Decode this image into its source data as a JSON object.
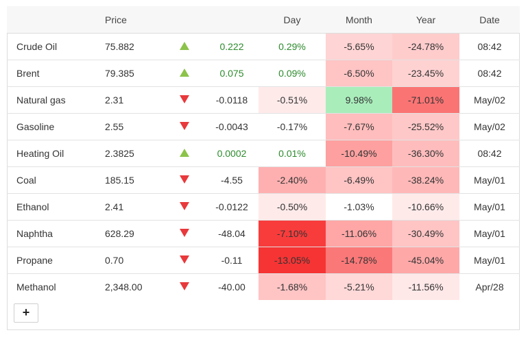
{
  "headers": {
    "name": "",
    "price": "Price",
    "arrow": "",
    "change": "",
    "day": "Day",
    "month": "Month",
    "year": "Year",
    "date": "Date"
  },
  "rows": [
    {
      "name": "Crude Oil",
      "price": "75.882",
      "direction": "up",
      "change": "0.222",
      "day": "0.29%",
      "month": "-5.65%",
      "year": "-24.78%",
      "date": "08:42",
      "day_bg": "#ffffff",
      "month_bg": "#ffd4d4",
      "year_bg": "#ffcccc"
    },
    {
      "name": "Brent",
      "price": "79.385",
      "direction": "up",
      "change": "0.075",
      "day": "0.09%",
      "month": "-6.50%",
      "year": "-23.45%",
      "date": "08:42",
      "day_bg": "#ffffff",
      "month_bg": "#ffc4c4",
      "year_bg": "#ffd2d2"
    },
    {
      "name": "Natural gas",
      "price": "2.31",
      "direction": "down",
      "change": "-0.0118",
      "day": "-0.51%",
      "month": "9.98%",
      "year": "-71.01%",
      "date": "May/02",
      "day_bg": "#ffeaea",
      "month_bg": "#a9edbb",
      "year_bg": "#fb7474"
    },
    {
      "name": "Gasoline",
      "price": "2.55",
      "direction": "down",
      "change": "-0.0043",
      "day": "-0.17%",
      "month": "-7.67%",
      "year": "-25.52%",
      "date": "May/02",
      "day_bg": "#ffffff",
      "month_bg": "#ffbdbd",
      "year_bg": "#ffc8c8"
    },
    {
      "name": "Heating Oil",
      "price": "2.3825",
      "direction": "up",
      "change": "0.0002",
      "day": "0.01%",
      "month": "-10.49%",
      "year": "-36.30%",
      "date": "08:42",
      "day_bg": "#ffffff",
      "month_bg": "#fea0a0",
      "year_bg": "#ffbcbc"
    },
    {
      "name": "Coal",
      "price": "185.15",
      "direction": "down",
      "change": "-4.55",
      "day": "-2.40%",
      "month": "-6.49%",
      "year": "-38.24%",
      "date": "May/01",
      "day_bg": "#feb0b0",
      "month_bg": "#ffc4c4",
      "year_bg": "#ffb8b8"
    },
    {
      "name": "Ethanol",
      "price": "2.41",
      "direction": "down",
      "change": "-0.0122",
      "day": "-0.50%",
      "month": "-1.03%",
      "year": "-10.66%",
      "date": "May/01",
      "day_bg": "#ffeaea",
      "month_bg": "#ffffff",
      "year_bg": "#ffeaea"
    },
    {
      "name": "Naphtha",
      "price": "628.29",
      "direction": "down",
      "change": "-48.04",
      "day": "-7.10%",
      "month": "-11.06%",
      "year": "-30.49%",
      "date": "May/01",
      "day_bg": "#f83c3c",
      "month_bg": "#ffa6a6",
      "year_bg": "#ffc4c4"
    },
    {
      "name": "Propane",
      "price": "0.70",
      "direction": "down",
      "change": "-0.11",
      "day": "-13.05%",
      "month": "-14.78%",
      "year": "-45.04%",
      "date": "May/01",
      "day_bg": "#f63434",
      "month_bg": "#fb7878",
      "year_bg": "#ffa8a8"
    },
    {
      "name": "Methanol",
      "price": "2,348.00",
      "direction": "down",
      "change": "-40.00",
      "day": "-1.68%",
      "month": "-5.21%",
      "year": "-11.56%",
      "date": "Apr/28",
      "day_bg": "#ffc4c4",
      "month_bg": "#ffd8d8",
      "year_bg": "#ffe8e8"
    }
  ],
  "add_button": "+"
}
